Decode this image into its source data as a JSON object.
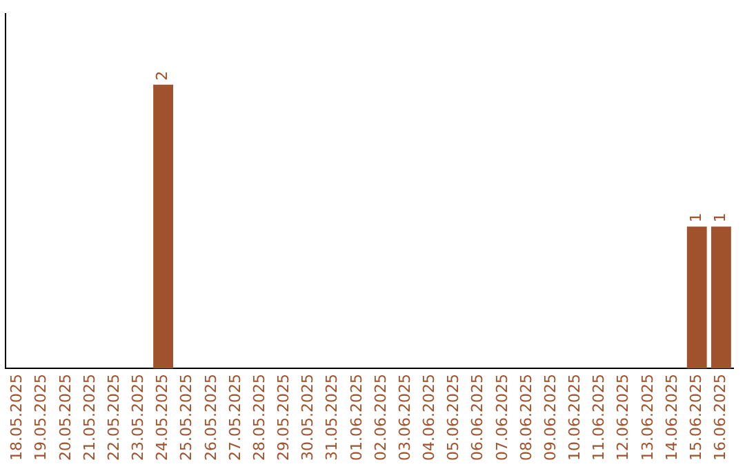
{
  "chart_data": {
    "type": "bar",
    "categories": [
      "18.05.2025",
      "19.05.2025",
      "20.05.2025",
      "21.05.2025",
      "22.05.2025",
      "23.05.2025",
      "24.05.2025",
      "25.05.2025",
      "26.05.2025",
      "27.05.2025",
      "28.05.2025",
      "29.05.2025",
      "30.05.2025",
      "31.05.2025",
      "01.06.2025",
      "02.06.2025",
      "03.06.2025",
      "04.06.2025",
      "05.06.2025",
      "06.06.2025",
      "07.06.2025",
      "08.06.2025",
      "09.06.2025",
      "10.06.2025",
      "11.06.2025",
      "12.06.2025",
      "13.06.2025",
      "14.06.2025",
      "15.06.2025",
      "16.06.2025"
    ],
    "values": [
      0,
      0,
      0,
      0,
      0,
      0,
      2,
      0,
      0,
      0,
      0,
      0,
      0,
      0,
      0,
      0,
      0,
      0,
      0,
      0,
      0,
      0,
      0,
      0,
      0,
      0,
      0,
      0,
      1,
      1
    ],
    "value_labels": [
      null,
      null,
      null,
      null,
      null,
      null,
      "2",
      null,
      null,
      null,
      null,
      null,
      null,
      null,
      null,
      null,
      null,
      null,
      null,
      null,
      null,
      null,
      null,
      null,
      null,
      null,
      null,
      null,
      "1",
      "1"
    ],
    "color": "#a0522d",
    "tick_labels": "x",
    "grid": false,
    "legend": false
  }
}
